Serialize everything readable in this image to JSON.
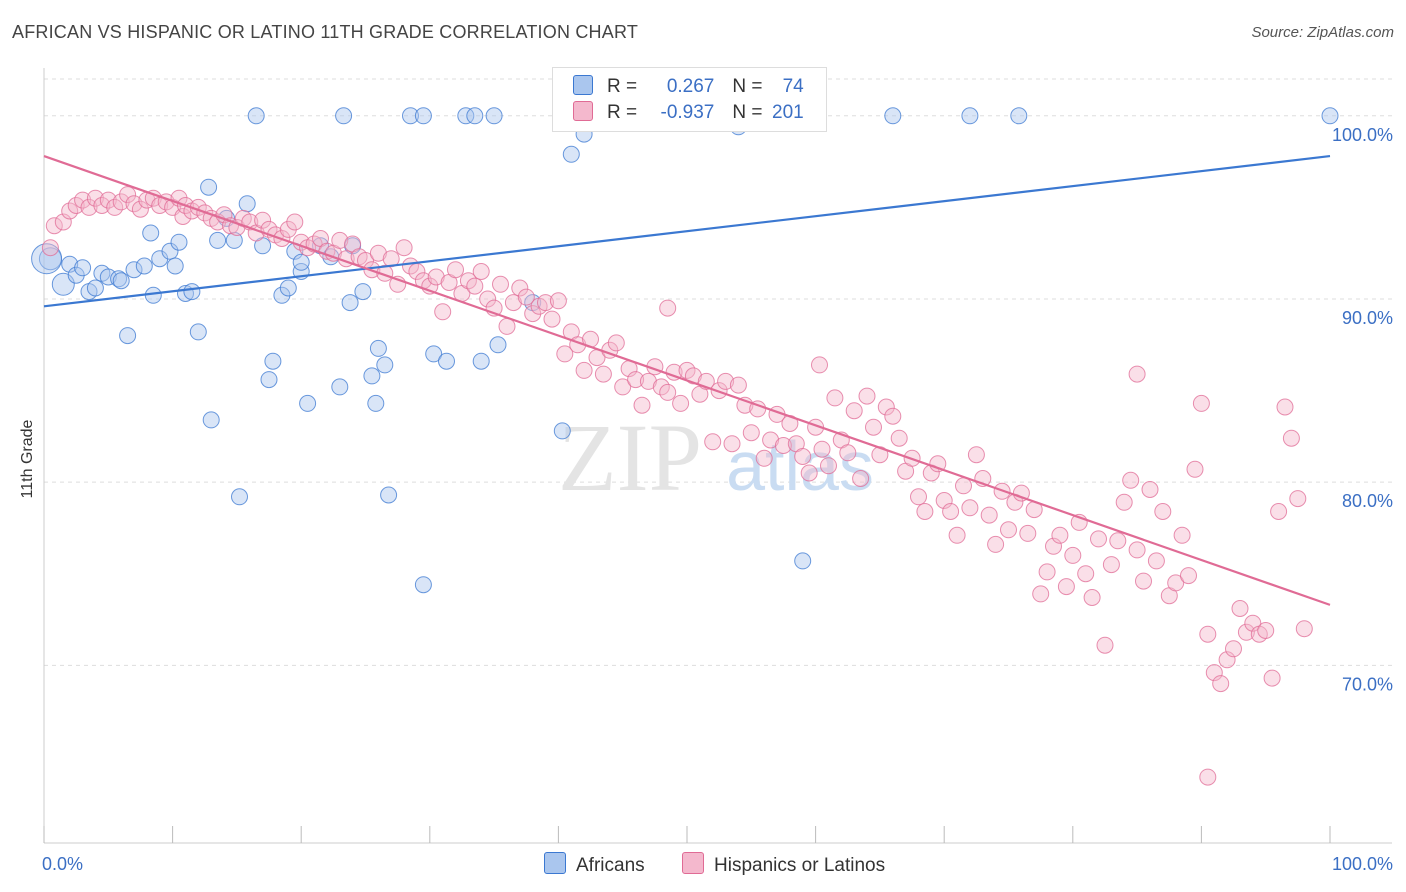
{
  "header": {
    "title": "AFRICAN VS HISPANIC OR LATINO 11TH GRADE CORRELATION CHART",
    "source": "Source: ZipAtlas.com"
  },
  "watermark": {
    "zip": "ZIP",
    "atlas": "atlas"
  },
  "legend": {
    "rows": [
      {
        "r_label": "R = ",
        "r_value": "0.267",
        "n_label": "N = ",
        "n_value": "74"
      },
      {
        "r_label": "R = ",
        "r_value": "-0.937",
        "n_label": "N = ",
        "n_value": "201"
      }
    ]
  },
  "colors": {
    "african": "#3b78d1",
    "african_fill": "#aac6ee",
    "hispanic": "#e06b95",
    "hispanic_fill": "#f4b8cd",
    "tick_text": "#3b6fc4",
    "grid": "#dddddd"
  },
  "chart_data": {
    "type": "scatter",
    "title": "AFRICAN VS HISPANIC OR LATINO 11TH GRADE CORRELATION CHART",
    "xlabel": "",
    "ylabel": "11th Grade",
    "xlim": [
      0,
      100
    ],
    "ylim": [
      60.3,
      102.5
    ],
    "x_tick_labels": [
      "0.0%",
      "100.0%"
    ],
    "y_ticks": [
      70,
      80,
      90,
      100
    ],
    "y_tick_labels": [
      "70.0%",
      "80.0%",
      "90.0%",
      "100.0%"
    ],
    "grid": true,
    "legend_position": "bottom",
    "series": [
      {
        "name": "Africans",
        "color": "#3b78d1",
        "r": 0.267,
        "n": 74,
        "trend": {
          "x": [
            0,
            100
          ],
          "y": [
            89.6,
            97.8
          ]
        },
        "points": [
          [
            0.5,
            92.2
          ],
          [
            1.5,
            90.8
          ],
          [
            2,
            91.9
          ],
          [
            2.5,
            91.3
          ],
          [
            3,
            91.7
          ],
          [
            3.5,
            90.4
          ],
          [
            4,
            90.6
          ],
          [
            4.5,
            91.4
          ],
          [
            5,
            91.2
          ],
          [
            5.8,
            91.1
          ],
          [
            6,
            91.0
          ],
          [
            6.5,
            88.0
          ],
          [
            7,
            91.6
          ],
          [
            7.8,
            91.8
          ],
          [
            8.3,
            93.6
          ],
          [
            8.5,
            90.2
          ],
          [
            9,
            92.2
          ],
          [
            9.8,
            92.6
          ],
          [
            10.2,
            91.8
          ],
          [
            10.5,
            93.1
          ],
          [
            11,
            90.3
          ],
          [
            11.5,
            90.4
          ],
          [
            12,
            88.2
          ],
          [
            12.8,
            96.1
          ],
          [
            13,
            83.4
          ],
          [
            13.5,
            93.2
          ],
          [
            14.2,
            94.4
          ],
          [
            14.8,
            93.2
          ],
          [
            15.2,
            79.2
          ],
          [
            15.8,
            95.2
          ],
          [
            16.5,
            100
          ],
          [
            17,
            92.9
          ],
          [
            17.5,
            85.6
          ],
          [
            17.8,
            86.6
          ],
          [
            18.5,
            90.2
          ],
          [
            19,
            90.6
          ],
          [
            19.5,
            92.6
          ],
          [
            20,
            91.5
          ],
          [
            20,
            92.0
          ],
          [
            20.5,
            84.3
          ],
          [
            21.5,
            92.9
          ],
          [
            22.3,
            92.3
          ],
          [
            23,
            85.2
          ],
          [
            23.3,
            100
          ],
          [
            23.8,
            89.8
          ],
          [
            24,
            92.9
          ],
          [
            24.8,
            90.4
          ],
          [
            25.5,
            85.8
          ],
          [
            25.8,
            84.3
          ],
          [
            26,
            87.3
          ],
          [
            26.5,
            86.4
          ],
          [
            26.8,
            79.3
          ],
          [
            28.5,
            100
          ],
          [
            29.5,
            100
          ],
          [
            29.5,
            74.4
          ],
          [
            30.3,
            87.0
          ],
          [
            31.3,
            86.6
          ],
          [
            32.8,
            100
          ],
          [
            33.5,
            100
          ],
          [
            34,
            86.6
          ],
          [
            35,
            100
          ],
          [
            35.3,
            87.5
          ],
          [
            38,
            89.8
          ],
          [
            40.3,
            82.8
          ],
          [
            41,
            97.9
          ],
          [
            42,
            99.0
          ],
          [
            54,
            99.4
          ],
          [
            59.5,
            100
          ],
          [
            59,
            75.7
          ],
          [
            66,
            100
          ],
          [
            72,
            100
          ],
          [
            75.8,
            100
          ],
          [
            100,
            100
          ],
          [
            0.2,
            92.2
          ]
        ]
      },
      {
        "name": "Hispanics or Latinos",
        "color": "#e06b95",
        "r": -0.937,
        "n": 201,
        "trend": {
          "x": [
            0,
            100
          ],
          "y": [
            97.8,
            73.3
          ]
        },
        "points": [
          [
            0.5,
            92.8
          ],
          [
            0.8,
            94.0
          ],
          [
            1.5,
            94.2
          ],
          [
            2,
            94.8
          ],
          [
            2.5,
            95.1
          ],
          [
            3,
            95.4
          ],
          [
            3.5,
            95.0
          ],
          [
            4,
            95.5
          ],
          [
            4.5,
            95.1
          ],
          [
            5,
            95.4
          ],
          [
            5.5,
            95.0
          ],
          [
            6,
            95.3
          ],
          [
            6.5,
            95.7
          ],
          [
            7,
            95.2
          ],
          [
            7.5,
            94.9
          ],
          [
            8,
            95.4
          ],
          [
            8.5,
            95.5
          ],
          [
            9,
            95.1
          ],
          [
            9.5,
            95.3
          ],
          [
            10,
            95.0
          ],
          [
            10.5,
            95.5
          ],
          [
            10.8,
            94.5
          ],
          [
            11,
            95.1
          ],
          [
            11.5,
            94.8
          ],
          [
            12,
            95.0
          ],
          [
            12.5,
            94.7
          ],
          [
            13,
            94.4
          ],
          [
            13.5,
            94.2
          ],
          [
            14,
            94.6
          ],
          [
            14.5,
            94.0
          ],
          [
            15,
            93.9
          ],
          [
            15.5,
            94.4
          ],
          [
            16,
            94.2
          ],
          [
            16.5,
            93.6
          ],
          [
            17,
            94.3
          ],
          [
            17.5,
            93.8
          ],
          [
            18,
            93.5
          ],
          [
            18.5,
            93.3
          ],
          [
            19,
            93.8
          ],
          [
            19.5,
            94.2
          ],
          [
            20,
            93.1
          ],
          [
            20.5,
            92.8
          ],
          [
            21,
            93.0
          ],
          [
            21.5,
            93.3
          ],
          [
            22,
            92.6
          ],
          [
            22.5,
            92.5
          ],
          [
            23,
            93.2
          ],
          [
            23.5,
            92.2
          ],
          [
            24,
            93.0
          ],
          [
            24.5,
            92.3
          ],
          [
            25,
            92.1
          ],
          [
            25.5,
            91.6
          ],
          [
            26,
            92.5
          ],
          [
            26.5,
            91.4
          ],
          [
            27,
            92.2
          ],
          [
            27.5,
            90.8
          ],
          [
            28,
            92.8
          ],
          [
            28.5,
            91.8
          ],
          [
            29,
            91.5
          ],
          [
            29.5,
            91.0
          ],
          [
            30,
            90.7
          ],
          [
            30.5,
            91.2
          ],
          [
            31,
            89.3
          ],
          [
            31.5,
            90.9
          ],
          [
            32,
            91.6
          ],
          [
            32.5,
            90.3
          ],
          [
            33,
            91.0
          ],
          [
            33.5,
            90.7
          ],
          [
            34,
            91.5
          ],
          [
            34.5,
            90.0
          ],
          [
            35,
            89.5
          ],
          [
            35.5,
            90.8
          ],
          [
            36,
            88.5
          ],
          [
            36.5,
            89.8
          ],
          [
            37,
            90.6
          ],
          [
            37.5,
            90.1
          ],
          [
            38,
            89.2
          ],
          [
            38.5,
            89.6
          ],
          [
            39,
            89.8
          ],
          [
            39.5,
            88.9
          ],
          [
            40,
            89.9
          ],
          [
            40.5,
            87.0
          ],
          [
            41,
            88.2
          ],
          [
            41.5,
            87.5
          ],
          [
            42,
            86.1
          ],
          [
            42.5,
            87.8
          ],
          [
            43,
            86.8
          ],
          [
            43.5,
            85.9
          ],
          [
            44,
            87.2
          ],
          [
            44.5,
            87.6
          ],
          [
            45,
            85.2
          ],
          [
            45.5,
            86.2
          ],
          [
            46,
            85.6
          ],
          [
            46.5,
            84.2
          ],
          [
            47,
            85.5
          ],
          [
            47.5,
            86.3
          ],
          [
            48,
            85.2
          ],
          [
            48.5,
            84.9
          ],
          [
            49,
            86.0
          ],
          [
            49.5,
            84.3
          ],
          [
            50,
            86.1
          ],
          [
            50.5,
            85.8
          ],
          [
            51,
            84.8
          ],
          [
            51.5,
            85.5
          ],
          [
            52,
            82.2
          ],
          [
            52.5,
            85.0
          ],
          [
            53,
            85.5
          ],
          [
            53.5,
            82.1
          ],
          [
            54,
            85.3
          ],
          [
            54.5,
            84.2
          ],
          [
            55,
            82.7
          ],
          [
            55.5,
            84.0
          ],
          [
            56,
            81.3
          ],
          [
            56.5,
            82.3
          ],
          [
            57,
            83.7
          ],
          [
            57.5,
            82.0
          ],
          [
            58,
            83.2
          ],
          [
            58.5,
            82.1
          ],
          [
            59,
            81.4
          ],
          [
            59.5,
            80.5
          ],
          [
            60,
            83.0
          ],
          [
            60.5,
            81.8
          ],
          [
            61,
            80.9
          ],
          [
            61.5,
            84.6
          ],
          [
            62,
            82.3
          ],
          [
            62.5,
            81.6
          ],
          [
            63,
            83.9
          ],
          [
            63.5,
            80.2
          ],
          [
            64,
            84.7
          ],
          [
            64.5,
            83.0
          ],
          [
            65,
            81.5
          ],
          [
            65.5,
            84.1
          ],
          [
            66,
            83.6
          ],
          [
            66.5,
            82.4
          ],
          [
            67,
            80.6
          ],
          [
            67.5,
            81.3
          ],
          [
            68,
            79.2
          ],
          [
            68.5,
            78.4
          ],
          [
            69,
            80.5
          ],
          [
            69.5,
            81.0
          ],
          [
            70,
            79.0
          ],
          [
            70.5,
            78.4
          ],
          [
            71,
            77.1
          ],
          [
            71.5,
            79.8
          ],
          [
            72,
            78.6
          ],
          [
            72.5,
            81.5
          ],
          [
            73,
            80.2
          ],
          [
            73.5,
            78.2
          ],
          [
            74,
            76.6
          ],
          [
            74.5,
            79.5
          ],
          [
            75,
            77.4
          ],
          [
            75.5,
            78.9
          ],
          [
            76,
            79.4
          ],
          [
            76.5,
            77.2
          ],
          [
            77,
            78.5
          ],
          [
            77.5,
            73.9
          ],
          [
            78,
            75.1
          ],
          [
            78.5,
            76.5
          ],
          [
            79,
            77.1
          ],
          [
            79.5,
            74.3
          ],
          [
            80,
            76.0
          ],
          [
            80.5,
            77.8
          ],
          [
            81,
            75.0
          ],
          [
            81.5,
            73.7
          ],
          [
            82,
            76.9
          ],
          [
            82.5,
            71.1
          ],
          [
            83,
            75.5
          ],
          [
            83.5,
            76.8
          ],
          [
            84,
            78.9
          ],
          [
            84.5,
            80.1
          ],
          [
            85,
            76.3
          ],
          [
            85.5,
            74.6
          ],
          [
            86,
            79.6
          ],
          [
            86.5,
            75.7
          ],
          [
            87,
            78.4
          ],
          [
            87.5,
            73.8
          ],
          [
            88,
            74.5
          ],
          [
            88.5,
            77.1
          ],
          [
            89,
            74.9
          ],
          [
            89.5,
            80.7
          ],
          [
            90,
            84.3
          ],
          [
            90.5,
            71.7
          ],
          [
            91,
            69.6
          ],
          [
            91.5,
            69.0
          ],
          [
            92,
            70.3
          ],
          [
            92.5,
            70.9
          ],
          [
            93,
            73.1
          ],
          [
            93.5,
            71.8
          ],
          [
            94,
            72.3
          ],
          [
            94.5,
            71.7
          ],
          [
            95,
            71.9
          ],
          [
            95.5,
            69.3
          ],
          [
            96,
            78.4
          ],
          [
            96.5,
            84.1
          ],
          [
            97,
            82.4
          ],
          [
            97.5,
            79.1
          ],
          [
            98,
            72.0
          ],
          [
            90.5,
            63.9
          ],
          [
            60.3,
            86.4
          ],
          [
            48.5,
            89.5
          ],
          [
            85,
            85.9
          ]
        ]
      }
    ]
  },
  "bottom_legend": {
    "items": [
      {
        "label": "Africans"
      },
      {
        "label": "Hispanics or Latinos"
      }
    ]
  }
}
